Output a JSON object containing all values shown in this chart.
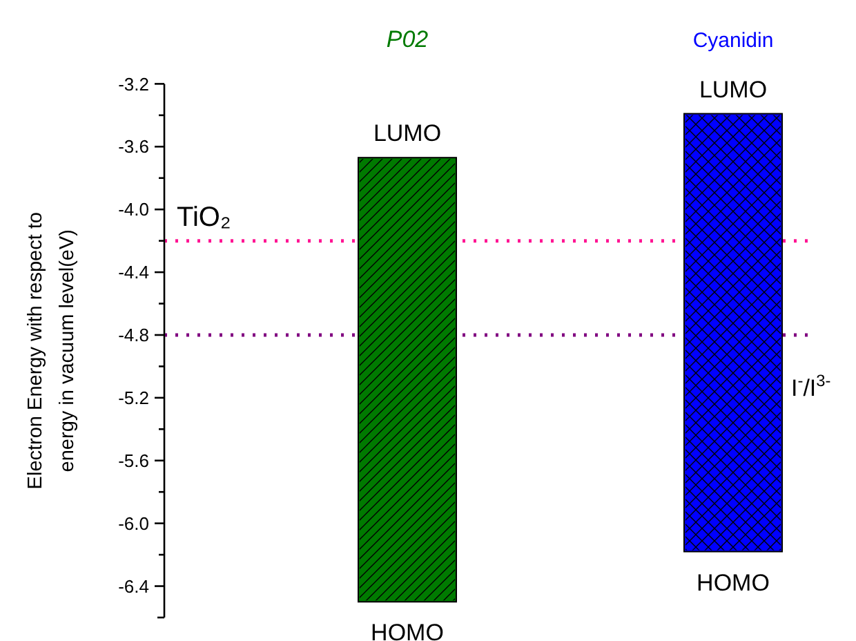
{
  "chart_data": {
    "type": "bar",
    "categories": [
      "P02",
      "Cyanidin"
    ],
    "colors": [
      "#007a00",
      "#0000ff"
    ],
    "base": [
      -6.5,
      -6.18
    ],
    "values": [
      2.83,
      2.79
    ],
    "ylabel": "Electron Energy with respect to\nenergy in vacuum level(eV)",
    "ylim": [
      -6.6,
      -3.2
    ],
    "yticks": [
      -3.2,
      -3.6,
      {
        "value": -4,
        "label": "-4.0"
      },
      -4.4,
      -4.8,
      -5.2,
      -5.6,
      {
        "value": -6,
        "label": "-6.0"
      },
      -6.4
    ],
    "ref_lines": [
      {
        "axis": "y",
        "value": -4.2,
        "label": "TiO₂",
        "color": "#ff1493",
        "line_style": "dotted"
      },
      {
        "axis": "y",
        "value": -4.8,
        "label": "I$^{-}$/I$^{3-}$",
        "color": "#800080",
        "line_style": "dotted"
      }
    ],
    "annotations": [
      {
        "text": "LUMO",
        "x": "P02",
        "y": -3.67
      },
      {
        "text": "HOMO",
        "x": "P02",
        "y": -6.5
      },
      {
        "text": "LUMO",
        "x": "Cyanidin",
        "y": -3.39
      },
      {
        "text": "HOMO",
        "x": "Cyanidin",
        "y": -6.18
      }
    ]
  }
}
